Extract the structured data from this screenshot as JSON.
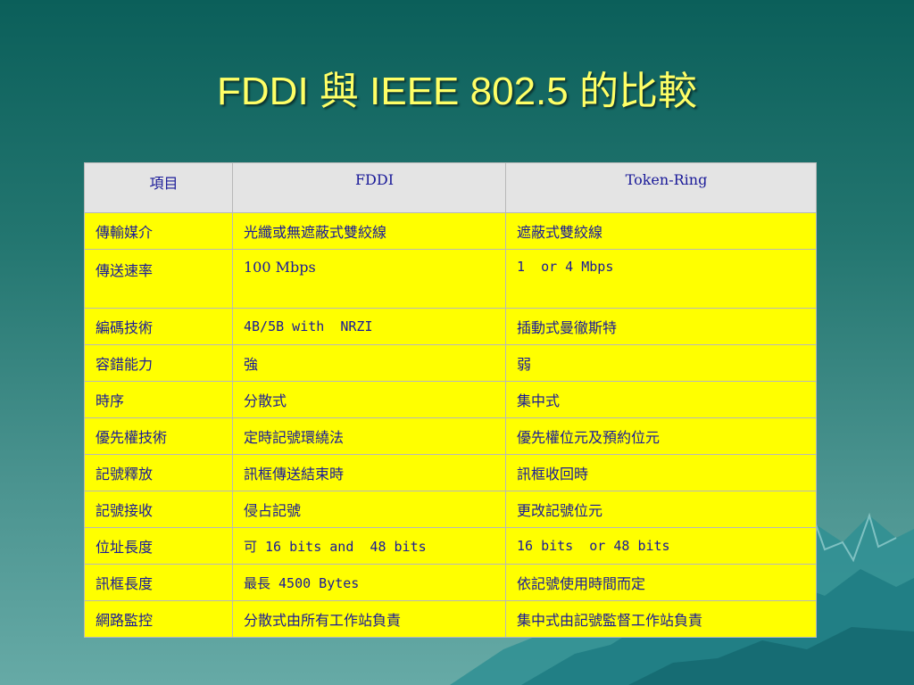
{
  "slide": {
    "title": "FDDI 與 IEEE 802.5 的比較"
  },
  "table": {
    "headers": [
      "項目",
      "FDDI",
      "Token-Ring"
    ],
    "rows": [
      [
        "傳輸媒介",
        "光纖或無遮蔽式雙絞線",
        "遮蔽式雙絞線"
      ],
      [
        "傳送速率",
        "100 Mbps",
        "1  or 4 Mbps"
      ],
      [
        "編碼技術",
        "4B/5B with  NRZI",
        "插動式曼徹斯特"
      ],
      [
        "容錯能力",
        "強",
        "弱"
      ],
      [
        "時序",
        "分散式",
        "集中式"
      ],
      [
        "優先權技術",
        "定時記號環繞法",
        "優先權位元及預約位元"
      ],
      [
        "記號釋放",
        "訊框傳送結束時",
        "訊框收回時"
      ],
      [
        "記號接收",
        "侵占記號",
        "更改記號位元"
      ],
      [
        "位址長度",
        "可 16 bits and  48 bits",
        "16 bits  or 48 bits"
      ],
      [
        "訊框長度",
        "最長 4500 Bytes",
        "依記號使用時間而定"
      ],
      [
        "網路監控",
        "分散式由所有工作站負責",
        "集中式由記號監督工作站負責"
      ]
    ]
  },
  "colors": {
    "title": "#ffff66",
    "cell_background": "#ffff00",
    "header_background": "#e4e4e4",
    "cell_text": "#1a1a99"
  }
}
